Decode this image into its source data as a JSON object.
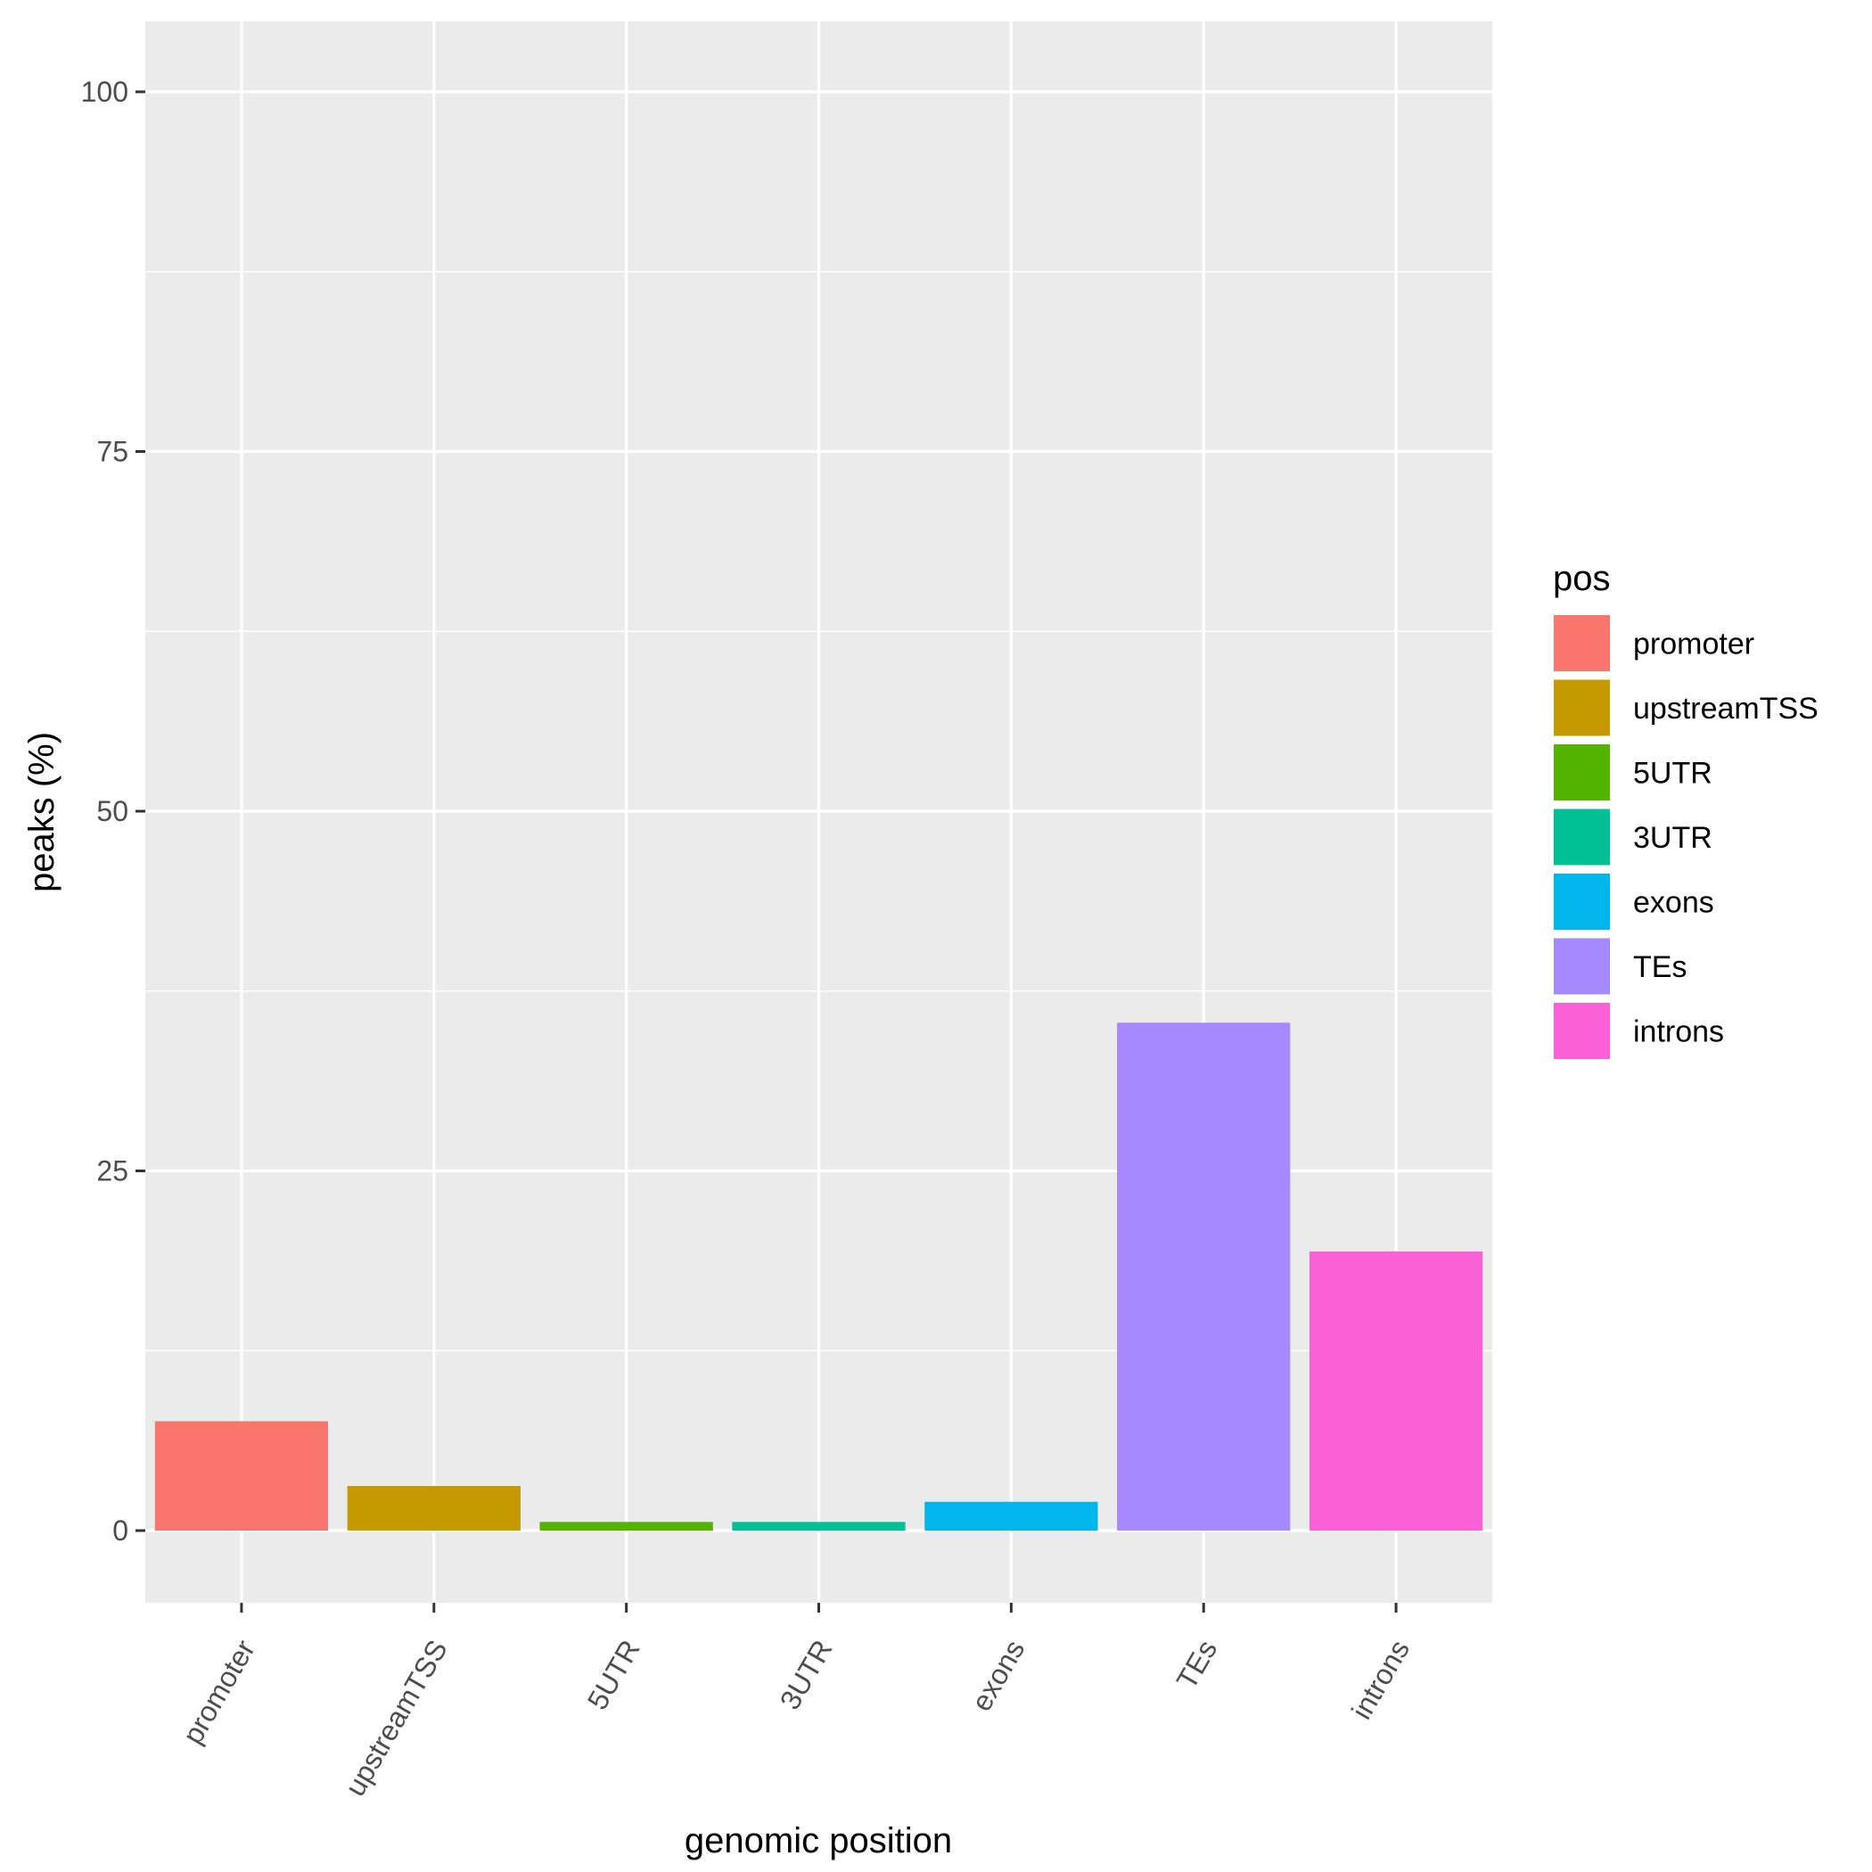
{
  "chart_data": {
    "type": "bar",
    "xlabel": "genomic position",
    "ylabel": "peaks (%)",
    "categories": [
      "promoter",
      "upstreamTSS",
      "5UTR",
      "3UTR",
      "exons",
      "TEs",
      "introns"
    ],
    "values": [
      7.6,
      3.1,
      0.6,
      0.6,
      2.0,
      35.3,
      19.4
    ],
    "colors": [
      "#F8766D",
      "#C49A00",
      "#53B400",
      "#00C094",
      "#00B6EB",
      "#A58AFF",
      "#FB61D7"
    ],
    "ylim": [
      -4.8,
      105
    ],
    "yticks": [
      0,
      25,
      50,
      75,
      100
    ],
    "grid": true,
    "legend": {
      "title": "pos",
      "position": "right",
      "entries": [
        "promoter",
        "upstreamTSS",
        "5UTR",
        "3UTR",
        "exons",
        "TEs",
        "introns"
      ]
    }
  }
}
